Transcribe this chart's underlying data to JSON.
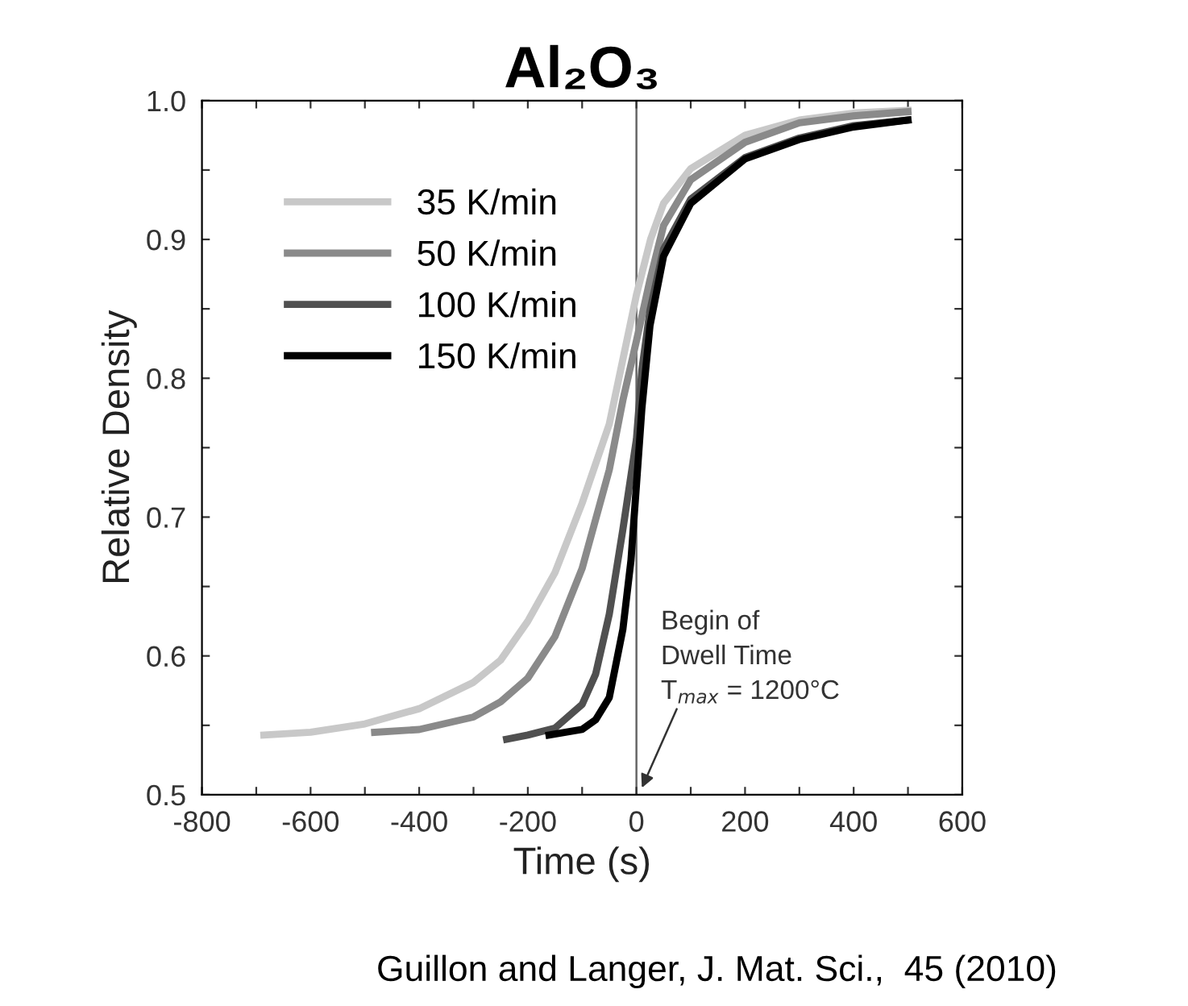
{
  "chart_data": {
    "type": "line",
    "title": "Al₂O₃",
    "xlabel": "Time (s)",
    "ylabel": "Relative Density",
    "xlim": [
      -800,
      600
    ],
    "ylim": [
      0.5,
      1.0
    ],
    "xticks": [
      -800,
      {
        "value": -700,
        "label": null
      },
      -600,
      {
        "value": -500,
        "label": null
      },
      -400,
      {
        "value": -300,
        "label": null
      },
      -200,
      {
        "value": -100,
        "label": null
      },
      0,
      {
        "value": 100,
        "label": null
      },
      200,
      {
        "value": 300,
        "label": null
      },
      400,
      {
        "value": 500,
        "label": null
      },
      600
    ],
    "yticks": [
      {
        "value": 0.5,
        "label": "0.5"
      },
      {
        "value": 0.55,
        "label": null
      },
      {
        "value": 0.6,
        "label": "0.6"
      },
      {
        "value": 0.65,
        "label": null
      },
      {
        "value": 0.7,
        "label": "0.7"
      },
      {
        "value": 0.75,
        "label": null
      },
      {
        "value": 0.8,
        "label": "0.8"
      },
      {
        "value": 0.85,
        "label": null
      },
      {
        "value": 0.9,
        "label": "0.9"
      },
      {
        "value": 0.95,
        "label": null
      },
      {
        "value": 1.0,
        "label": "1.0"
      }
    ],
    "grid": false,
    "legend": "top left",
    "marker": "none",
    "line_style": "solid",
    "ref_lines": [
      {
        "axis": "x",
        "value": 0,
        "color": "#666666"
      }
    ],
    "annotations": [
      {
        "text": "Begin of\nDwell Time\nT$_{max}$ = 1200°C",
        "x": 10,
        "y": 0.505
      },
      "Guillon and Langer, J. Mat. Sci.,  45 (2010)"
    ],
    "series": [
      {
        "name": "35 K/min",
        "color": "#c8c8c8",
        "x": [
          -686,
          -600,
          -500,
          -400,
          -300,
          -250,
          -200,
          -150,
          -100,
          -50,
          0,
          26,
          50,
          100,
          200,
          300,
          400,
          500
        ],
        "values": [
          0.543,
          0.545,
          0.551,
          0.562,
          0.581,
          0.597,
          0.625,
          0.66,
          0.71,
          0.767,
          0.86,
          0.9,
          0.926,
          0.951,
          0.975,
          0.986,
          0.991,
          0.993
        ]
      },
      {
        "name": "50 K/min",
        "color": "#8a8a8a",
        "x": [
          -482,
          -400,
          -300,
          -250,
          -200,
          -150,
          -100,
          -50,
          -25,
          0,
          25,
          50,
          100,
          200,
          300,
          400,
          500
        ],
        "values": [
          0.545,
          0.547,
          0.556,
          0.567,
          0.584,
          0.614,
          0.663,
          0.734,
          0.784,
          0.827,
          0.871,
          0.91,
          0.943,
          0.97,
          0.984,
          0.989,
          0.992
        ]
      },
      {
        "name": "100 K/min",
        "color": "#505050",
        "x": [
          -239,
          -200,
          -150,
          -100,
          -75,
          -50,
          -25,
          0,
          10,
          25,
          50,
          100,
          200,
          300,
          400,
          500
        ],
        "values": [
          0.54,
          0.543,
          0.548,
          0.565,
          0.587,
          0.63,
          0.691,
          0.756,
          0.806,
          0.849,
          0.893,
          0.929,
          0.959,
          0.973,
          0.982,
          0.986
        ]
      },
      {
        "name": "150 K/min",
        "color": "#000000",
        "x": [
          -161,
          -100,
          -75,
          -50,
          -25,
          -10,
          0,
          10,
          25,
          50,
          100,
          200,
          300,
          400,
          500
        ],
        "values": [
          0.543,
          0.547,
          0.554,
          0.57,
          0.619,
          0.669,
          0.723,
          0.778,
          0.838,
          0.888,
          0.926,
          0.958,
          0.972,
          0.981,
          0.986
        ]
      }
    ]
  }
}
